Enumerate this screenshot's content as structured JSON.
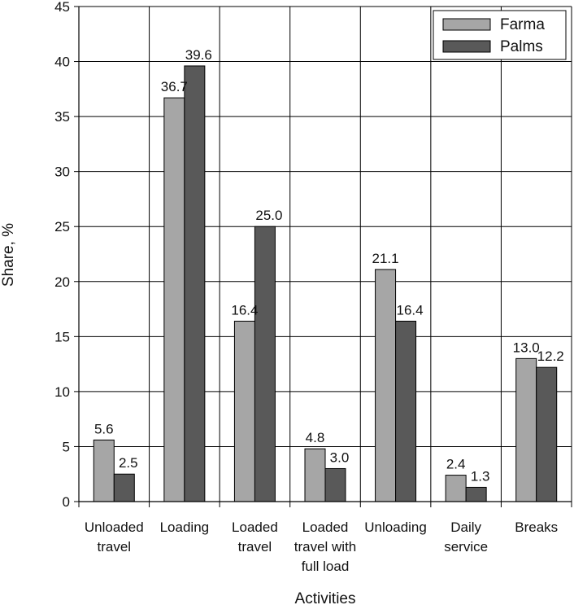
{
  "chart_data": {
    "type": "bar",
    "title": "",
    "xlabel": "Activities",
    "ylabel": "Share, %",
    "ylim": [
      0,
      45
    ],
    "yticks": [
      0,
      5,
      10,
      15,
      20,
      25,
      30,
      35,
      40,
      45
    ],
    "grid": true,
    "legend_position": "top-right",
    "categories": [
      [
        "Unloaded",
        "travel"
      ],
      [
        "Loading"
      ],
      [
        "Loaded",
        "travel"
      ],
      [
        "Loaded",
        "travel with",
        "full load"
      ],
      [
        "Unloading"
      ],
      [
        "Daily",
        "service"
      ],
      [
        "Breaks"
      ]
    ],
    "series": [
      {
        "name": "Farma",
        "color": "#a6a6a6",
        "values": [
          5.6,
          36.7,
          16.4,
          4.8,
          21.1,
          2.4,
          13.0
        ],
        "labels": [
          "5.6",
          "36.7",
          "16.4",
          "4.8",
          "21.1",
          "2.4",
          "13.0"
        ]
      },
      {
        "name": "Palms",
        "color": "#595959",
        "values": [
          2.5,
          39.6,
          25.0,
          3.0,
          16.4,
          1.3,
          12.2
        ],
        "labels": [
          "2.5",
          "39.6",
          "25.0",
          "3.0",
          "16.4",
          "1.3",
          "12.2"
        ]
      }
    ]
  }
}
